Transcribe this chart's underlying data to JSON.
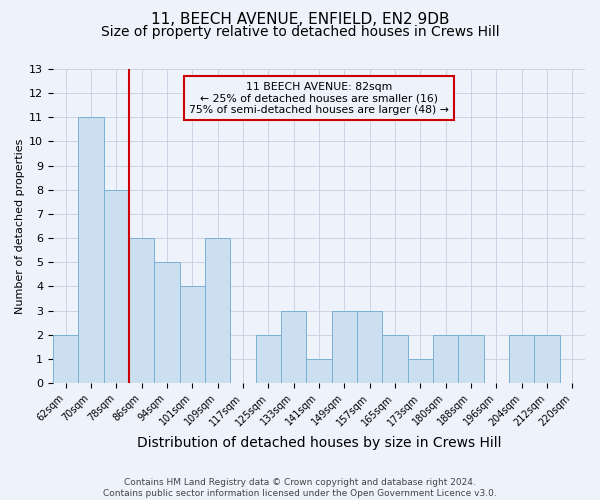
{
  "title": "11, BEECH AVENUE, ENFIELD, EN2 9DB",
  "subtitle": "Size of property relative to detached houses in Crews Hill",
  "xlabel": "Distribution of detached houses by size in Crews Hill",
  "ylabel": "Number of detached properties",
  "categories": [
    "62sqm",
    "70sqm",
    "78sqm",
    "86sqm",
    "94sqm",
    "101sqm",
    "109sqm",
    "117sqm",
    "125sqm",
    "133sqm",
    "141sqm",
    "149sqm",
    "157sqm",
    "165sqm",
    "173sqm",
    "180sqm",
    "188sqm",
    "196sqm",
    "204sqm",
    "212sqm",
    "220sqm"
  ],
  "values": [
    2,
    11,
    8,
    6,
    5,
    4,
    6,
    0,
    2,
    3,
    1,
    3,
    3,
    2,
    1,
    2,
    2,
    0,
    2,
    2,
    0
  ],
  "bar_color": "#ccdff0",
  "bar_edge_color": "#7ab0d4",
  "red_line_x": 2.5,
  "annotation_line1": "11 BEECH AVENUE: 82sqm",
  "annotation_line2": "← 25% of detached houses are smaller (16)",
  "annotation_line3": "75% of semi-detached houses are larger (48) →",
  "annotation_box_edgecolor": "#cc0000",
  "ylim": [
    0,
    13
  ],
  "yticks": [
    0,
    1,
    2,
    3,
    4,
    5,
    6,
    7,
    8,
    9,
    10,
    11,
    12,
    13
  ],
  "footer": "Contains HM Land Registry data © Crown copyright and database right 2024.\nContains public sector information licensed under the Open Government Licence v3.0.",
  "background_color": "#eef2fb",
  "grid_color": "#c5cde0",
  "title_fontsize": 11,
  "subtitle_fontsize": 10,
  "xlabel_fontsize": 9,
  "ylabel_fontsize": 8,
  "tick_fontsize": 7,
  "footer_fontsize": 6.5
}
